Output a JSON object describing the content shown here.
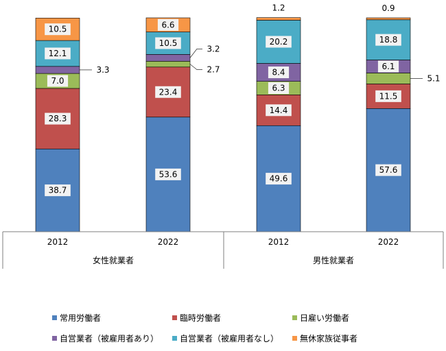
{
  "chart_data": {
    "type": "bar",
    "stacked": true,
    "ylim": [
      0,
      100
    ],
    "groups": [
      {
        "label": "女性就業者",
        "categories": [
          "2012",
          "2022"
        ]
      },
      {
        "label": "男性就業者",
        "categories": [
          "2012",
          "2022"
        ]
      }
    ],
    "series": [
      {
        "name": "常用労働者",
        "color": "#4F81BD",
        "values": [
          38.7,
          53.6,
          49.6,
          57.6
        ],
        "labels": [
          "38.7",
          "53.6",
          "49.6",
          "57.6"
        ]
      },
      {
        "name": "臨時労働者",
        "color": "#C0504D",
        "values": [
          28.3,
          23.4,
          14.4,
          11.5
        ],
        "labels": [
          "28.3",
          "23.4",
          "14.4",
          "11.5"
        ]
      },
      {
        "name": "日雇い労働者",
        "color": "#9BBB59",
        "values": [
          7.0,
          2.7,
          6.3,
          5.1
        ],
        "labels": [
          "7.0",
          "2.7",
          "6.3",
          "5.1"
        ]
      },
      {
        "name": "自営業者（被雇用者あり）",
        "color": "#8064A2",
        "values": [
          3.3,
          3.2,
          8.4,
          6.1
        ],
        "labels": [
          "3.3",
          "3.2",
          "8.4",
          "6.1"
        ]
      },
      {
        "name": "自営業者（被雇用者なし）",
        "color": "#4BACC6",
        "values": [
          12.1,
          10.5,
          20.2,
          18.8
        ],
        "labels": [
          "12.1",
          "10.5",
          "20.2",
          "18.8"
        ]
      },
      {
        "name": "無休家族従事者",
        "color": "#F79646",
        "values": [
          10.5,
          6.6,
          1.2,
          0.9
        ],
        "labels": [
          "10.5",
          "6.6",
          "1.2",
          "0.9"
        ]
      }
    ]
  }
}
